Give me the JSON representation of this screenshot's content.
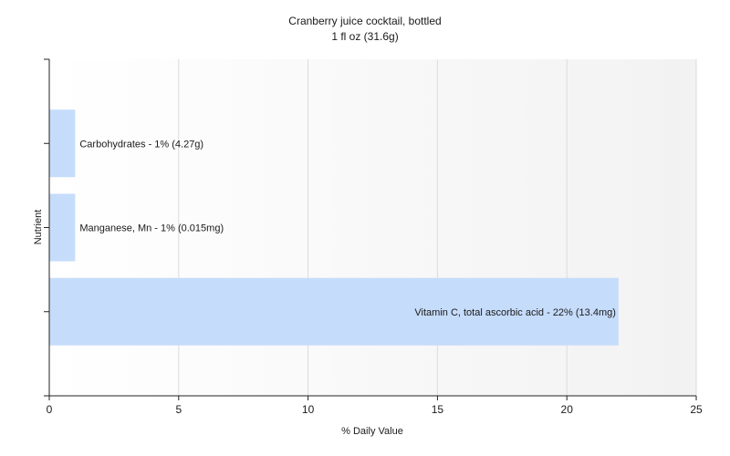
{
  "chart_data": {
    "type": "bar",
    "orientation": "horizontal",
    "title": "Cranberry juice cocktail, bottled",
    "subtitle": "1 fl oz (31.6g)",
    "xlabel": "% Daily Value",
    "ylabel": "Nutrient",
    "xlim": [
      0,
      25
    ],
    "xticks": [
      0,
      5,
      10,
      15,
      20,
      25
    ],
    "grid": true,
    "bars": [
      {
        "category": "Carbohydrates",
        "value": 1,
        "label": "Carbohydrates - 1% (4.27g)"
      },
      {
        "category": "Manganese, Mn",
        "value": 1,
        "label": "Manganese, Mn - 1% (0.015mg)"
      },
      {
        "category": "Vitamin C, total ascorbic acid",
        "value": 22,
        "label": "Vitamin C, total ascorbic acid - 22% (13.4mg)"
      }
    ],
    "colors": {
      "bar": "#c6dcfb",
      "axis": "#222222",
      "grid": "#dcdcdc"
    }
  }
}
